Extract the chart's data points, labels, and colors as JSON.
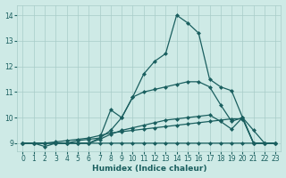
{
  "xlabel": "Humidex (Indice chaleur)",
  "xlim": [
    -0.5,
    23.5
  ],
  "ylim": [
    8.7,
    14.4
  ],
  "yticks": [
    9,
    10,
    11,
    12,
    13,
    14
  ],
  "xticks": [
    0,
    1,
    2,
    3,
    4,
    5,
    6,
    7,
    8,
    9,
    10,
    11,
    12,
    13,
    14,
    15,
    16,
    17,
    18,
    19,
    20,
    21,
    22,
    23
  ],
  "bg_color": "#ceeae6",
  "grid_color": "#a8ccc8",
  "line_color": "#1a5f5f",
  "line1": [
    9.0,
    9.0,
    8.87,
    9.0,
    9.0,
    9.0,
    9.0,
    9.0,
    9.0,
    9.0,
    9.0,
    9.0,
    9.0,
    9.0,
    9.0,
    9.0,
    9.0,
    9.0,
    9.0,
    9.0,
    9.0,
    9.0,
    9.0,
    9.0
  ],
  "line2": [
    9.0,
    9.0,
    9.0,
    9.05,
    9.1,
    9.15,
    9.2,
    9.3,
    9.4,
    9.45,
    9.5,
    9.55,
    9.6,
    9.65,
    9.7,
    9.75,
    9.8,
    9.85,
    9.9,
    9.95,
    9.95,
    9.0,
    9.0,
    9.0
  ],
  "line4_raw": [
    9.0,
    9.0,
    9.0,
    9.0,
    9.0,
    9.1,
    9.15,
    9.2,
    9.5,
    10.0,
    10.8,
    11.7,
    12.2,
    12.5,
    14.0,
    13.7,
    13.3,
    11.5,
    11.2,
    11.05,
    10.0,
    9.0,
    9.0,
    9.0
  ],
  "line_med": [
    9.0,
    9.0,
    9.0,
    9.0,
    9.0,
    9.0,
    9.0,
    9.15,
    9.35,
    9.5,
    9.6,
    9.7,
    9.8,
    9.9,
    9.95,
    10.0,
    10.05,
    10.1,
    9.85,
    9.55,
    10.0,
    9.0,
    9.0,
    9.0
  ],
  "line_upper": [
    9.0,
    9.0,
    9.0,
    9.0,
    9.0,
    9.0,
    9.0,
    9.2,
    10.3,
    10.0,
    10.8,
    11.0,
    11.1,
    11.2,
    11.3,
    11.4,
    11.4,
    11.2,
    10.5,
    9.85,
    10.0,
    9.5,
    9.0,
    9.0
  ],
  "marker": "D",
  "markersize": 2.5,
  "linewidth": 0.9
}
